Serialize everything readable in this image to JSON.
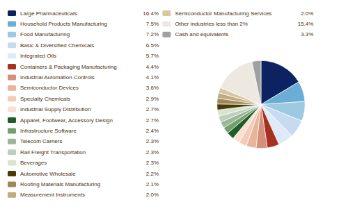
{
  "chart_data": {
    "type": "pie",
    "categories": [
      "Large Pharmaceuticals",
      "Household Products Manufacturing",
      "Food Manufacturing",
      "Basic & Diversified Chemicals",
      "Integrated Oils",
      "Containers & Packaging Manufacturing",
      "Industrial Automation Controls",
      "Semiconductor Devices",
      "Specialty Chemicals",
      "Industrial Supply Distribution",
      "Apparel, Footwear, Accessory Design",
      "Infrastructure Software",
      "Telecom Carriers",
      "Rail Freight Transportation",
      "Beverages",
      "Automotive Wholesale",
      "Roofing Materials Manufacturing",
      "Measurement Instruments",
      "Semiconductor Manufacturing Services",
      "Other industries less than 2%",
      "Cash and equivalents"
    ],
    "values": [
      16.4,
      7.5,
      7.2,
      6.5,
      5.7,
      4.4,
      4.1,
      3.6,
      2.9,
      2.7,
      2.7,
      2.4,
      2.3,
      2.3,
      2.3,
      2.2,
      2.1,
      2.0,
      2.0,
      15.4,
      3.3
    ],
    "value_labels": [
      "16.4%",
      "7.5%",
      "7.2%",
      "6.5%",
      "5.7%",
      "4.4%",
      "4.1%",
      "3.6%",
      "2.9%",
      "2.7%",
      "2.7%",
      "2.4%",
      "2.3%",
      "2.3%",
      "2.3%",
      "2.2%",
      "2.1%",
      "2.0%",
      "2.0%",
      "15.4%",
      "3.3%"
    ],
    "colors": [
      "#0d2260",
      "#6aaed6",
      "#9dcae1",
      "#c6dbef",
      "#deebf7",
      "#a63120",
      "#d4907a",
      "#e8b49a",
      "#f2ccb8",
      "#fbe0d0",
      "#1e5c28",
      "#74a06e",
      "#98b898",
      "#bdd0bd",
      "#d8e4d0",
      "#4a3a08",
      "#9e8858",
      "#c0aa80",
      "#d8c8a0",
      "#ede8e0",
      "#a0a0a0"
    ],
    "legend": "left"
  }
}
